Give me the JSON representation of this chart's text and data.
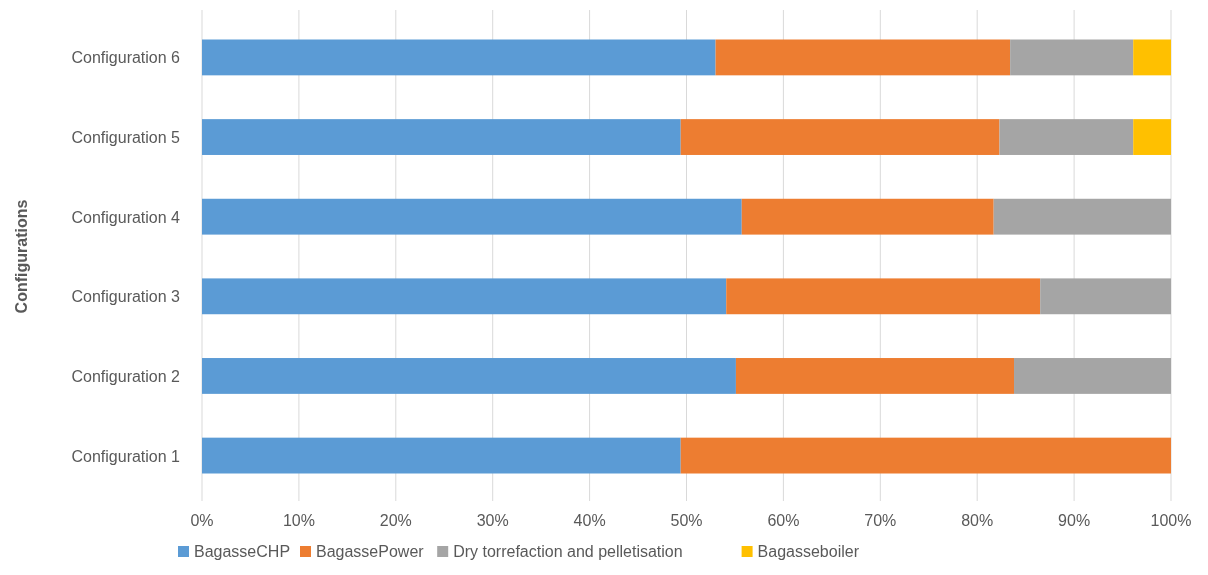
{
  "chart_data": {
    "type": "bar",
    "orientation": "horizontal",
    "stacked": true,
    "ylabel": "Configurations",
    "categories": [
      "Configuration 6",
      "Configuration 5",
      "Configuration 4",
      "Configuration 3",
      "Configuration 2",
      "Configuration 1"
    ],
    "series": [
      {
        "name": "BagasseCHP",
        "color": "#5b9bd5",
        "values": [
          53.0,
          49.4,
          55.7,
          54.1,
          55.1,
          49.4
        ]
      },
      {
        "name": "BagassePower",
        "color": "#ed7d31",
        "values": [
          30.4,
          32.9,
          26.0,
          32.4,
          28.7,
          50.6
        ]
      },
      {
        "name": "Dry torrefaction and pelletisation",
        "color": "#a5a5a5",
        "values": [
          12.7,
          13.8,
          18.3,
          13.5,
          16.2,
          0
        ]
      },
      {
        "name": "Bagasseboiler",
        "color": "#ffc000",
        "values": [
          3.9,
          3.9,
          0,
          0,
          0,
          0
        ]
      }
    ],
    "xlim": [
      0,
      100
    ],
    "xticks": [
      {
        "value": 0,
        "label": "0%"
      },
      {
        "value": 10,
        "label": "10%"
      },
      {
        "value": 20,
        "label": "20%"
      },
      {
        "value": 30,
        "label": "30%"
      },
      {
        "value": 40,
        "label": "40%"
      },
      {
        "value": 50,
        "label": "50%"
      },
      {
        "value": 60,
        "label": "60%"
      },
      {
        "value": 70,
        "label": "70%"
      },
      {
        "value": 80,
        "label": "80%"
      },
      {
        "value": 90,
        "label": "90%"
      },
      {
        "value": 100,
        "label": "100%"
      }
    ],
    "grid": "x",
    "legend": "bottom"
  }
}
